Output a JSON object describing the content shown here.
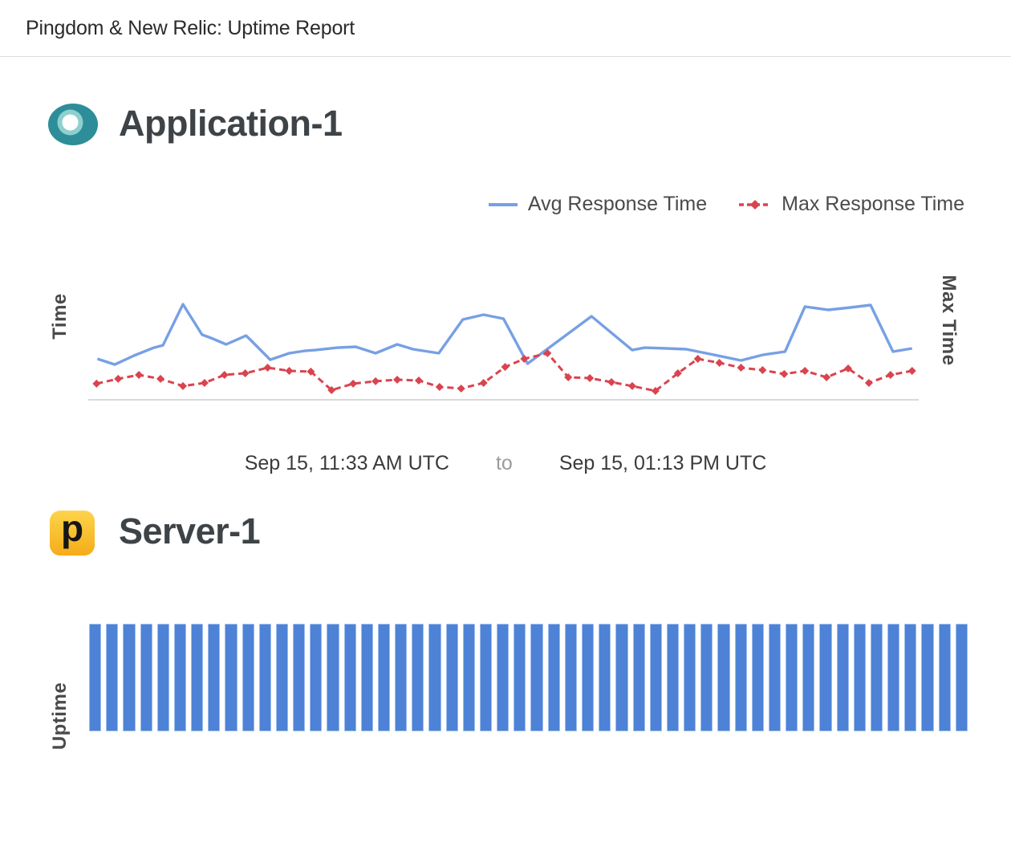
{
  "header": {
    "title": "Pingdom & New Relic: Uptime Report"
  },
  "application_section": {
    "title": "Application-1",
    "icon": "new-relic-icon",
    "icon_colors": {
      "outer": "#2d8d99",
      "ring": "#8ed0cd",
      "core": "#ffffff"
    },
    "legend": [
      {
        "label": "Avg Response Time",
        "color": "#77a0e4",
        "style": "solid"
      },
      {
        "label": "Max Response Time",
        "color": "#d9444f",
        "style": "dashed-diamond"
      }
    ],
    "y_axis_left": "Time",
    "y_axis_right": "Max Time",
    "date_range": {
      "start": "Sep 15, 11:33 AM UTC",
      "separator": "to",
      "end": "Sep 15, 01:13 PM UTC"
    }
  },
  "server_section": {
    "title": "Server-1",
    "icon": "pingdom-icon",
    "icon_letter": "p",
    "icon_colors": {
      "background_top": "#fdd44c",
      "background_bottom": "#f5ac18",
      "glyph": "#161616"
    },
    "y_axis_left": "Uptime"
  },
  "colors": {
    "avg_line": "#77a0e4",
    "max_line": "#d9444f",
    "uptime_bar": "#4d82d6",
    "axis_baseline": "#d9d9d9",
    "heading_text": "#3e4347",
    "body_text": "#4a4a4a",
    "muted_text": "#9b9b9b"
  },
  "chart_data": [
    {
      "type": "line",
      "title": "Application-1 response time",
      "ylabel_left": "Time",
      "ylabel_right": "Max Time",
      "x_start_label": "Sep 15, 11:33 AM UTC",
      "x_end_label": "Sep 15, 01:13 PM UTC",
      "grid": false,
      "legend_position": "top-right",
      "y_units": "percent of plot height (no tick labels shown)",
      "series": [
        {
          "name": "Avg Response Time",
          "color": "#77a0e4",
          "style": "solid",
          "marker": "none",
          "points": [
            [
              1.1,
              32.3
            ],
            [
              3.2,
              27.8
            ],
            [
              5.5,
              34.8
            ],
            [
              7.9,
              41.1
            ],
            [
              9.0,
              43.0
            ],
            [
              11.4,
              75.3
            ],
            [
              13.7,
              51.3
            ],
            [
              14.8,
              48.7
            ],
            [
              16.6,
              43.7
            ],
            [
              19.0,
              50.6
            ],
            [
              19.5,
              47.5
            ],
            [
              21.9,
              31.6
            ],
            [
              24.2,
              36.7
            ],
            [
              26.1,
              38.6
            ],
            [
              27.3,
              39.2
            ],
            [
              30.0,
              41.1
            ],
            [
              32.2,
              41.8
            ],
            [
              34.6,
              36.7
            ],
            [
              37.2,
              43.7
            ],
            [
              39.1,
              39.9
            ],
            [
              42.2,
              36.7
            ],
            [
              45.1,
              63.3
            ],
            [
              47.6,
              67.1
            ],
            [
              50.0,
              63.9
            ],
            [
              52.9,
              28.5
            ],
            [
              60.6,
              65.8
            ],
            [
              65.5,
              39.2
            ],
            [
              67.0,
              41.1
            ],
            [
              69.6,
              40.5
            ],
            [
              72.0,
              39.9
            ],
            [
              74.4,
              36.7
            ],
            [
              78.6,
              31.0
            ],
            [
              81.2,
              35.4
            ],
            [
              83.9,
              38.0
            ],
            [
              86.3,
              73.4
            ],
            [
              89.1,
              70.9
            ],
            [
              91.8,
              72.8
            ],
            [
              94.2,
              74.7
            ],
            [
              96.9,
              38.0
            ],
            [
              99.2,
              40.5
            ]
          ]
        },
        {
          "name": "Max Response Time",
          "color": "#d9444f",
          "style": "dashed-diamond",
          "marker": "diamond",
          "points": [
            [
              1.0,
              12.7
            ],
            [
              3.6,
              16.5
            ],
            [
              6.1,
              19.6
            ],
            [
              8.7,
              16.5
            ],
            [
              11.4,
              10.8
            ],
            [
              14.0,
              13.3
            ],
            [
              16.4,
              19.6
            ],
            [
              18.9,
              20.9
            ],
            [
              21.6,
              25.3
            ],
            [
              24.2,
              22.8
            ],
            [
              26.8,
              22.2
            ],
            [
              29.3,
              7.6
            ],
            [
              31.9,
              12.7
            ],
            [
              34.6,
              14.6
            ],
            [
              37.2,
              15.8
            ],
            [
              39.8,
              15.2
            ],
            [
              42.3,
              10.1
            ],
            [
              44.9,
              8.9
            ],
            [
              47.6,
              13.3
            ],
            [
              50.2,
              25.9
            ],
            [
              52.5,
              32.3
            ],
            [
              55.3,
              36.7
            ],
            [
              57.8,
              17.7
            ],
            [
              60.4,
              17.1
            ],
            [
              63.0,
              13.9
            ],
            [
              65.5,
              10.8
            ],
            [
              68.3,
              7.0
            ],
            [
              71.0,
              20.9
            ],
            [
              73.4,
              32.3
            ],
            [
              76.0,
              29.1
            ],
            [
              78.6,
              25.3
            ],
            [
              81.2,
              23.4
            ],
            [
              83.8,
              20.3
            ],
            [
              86.3,
              22.8
            ],
            [
              88.9,
              17.7
            ],
            [
              91.5,
              24.7
            ],
            [
              94.0,
              13.3
            ],
            [
              96.6,
              19.6
            ],
            [
              99.2,
              22.8
            ]
          ]
        }
      ]
    },
    {
      "type": "bar",
      "title": "Server-1 uptime",
      "ylabel": "Uptime",
      "bar_color": "#4d82d6",
      "ylim": [
        0,
        100
      ],
      "values": [
        100,
        100,
        100,
        100,
        100,
        100,
        100,
        100,
        100,
        100,
        100,
        100,
        100,
        100,
        100,
        100,
        100,
        100,
        100,
        100,
        100,
        100,
        100,
        100,
        100,
        100,
        100,
        100,
        100,
        100,
        100,
        100,
        100,
        100,
        100,
        100,
        100,
        100,
        100,
        100,
        100,
        100,
        100,
        100,
        100,
        100,
        100,
        100,
        100,
        100,
        100,
        100
      ]
    }
  ]
}
